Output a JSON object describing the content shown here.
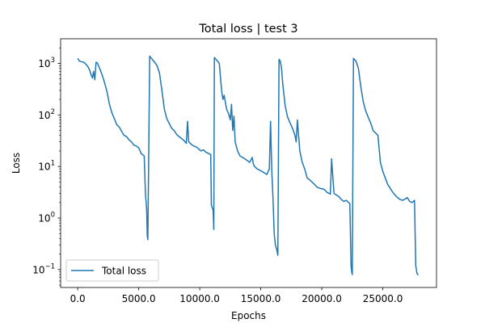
{
  "chart_data": {
    "type": "line",
    "title": "Total loss | test 3",
    "xlabel": "Epochs",
    "ylabel": "Loss",
    "xscale": "linear",
    "yscale": "log",
    "xlim": [
      -1400,
      29400
    ],
    "ylim": [
      0.045,
      3000
    ],
    "grid": false,
    "legend_position": "lower-left",
    "line_color": "#1f77b4",
    "x_ticks": [
      {
        "value": 0,
        "label": "0.0"
      },
      {
        "value": 5000,
        "label": "5000.0"
      },
      {
        "value": 10000,
        "label": "10000.0"
      },
      {
        "value": 15000,
        "label": "15000.0"
      },
      {
        "value": 20000,
        "label": "20000.0"
      },
      {
        "value": 25000,
        "label": "25000.0"
      }
    ],
    "y_ticks": [
      {
        "value": 0.1,
        "base": "10",
        "exp": "−1"
      },
      {
        "value": 1,
        "base": "10",
        "exp": "0"
      },
      {
        "value": 10,
        "base": "10",
        "exp": "1"
      },
      {
        "value": 100,
        "base": "10",
        "exp": "2"
      },
      {
        "value": 1000,
        "base": "10",
        "exp": "3"
      }
    ],
    "series": [
      {
        "name": "Total loss",
        "x": [
          0,
          150,
          300,
          500,
          700,
          850,
          1000,
          1100,
          1200,
          1300,
          1400,
          1500,
          1600,
          1800,
          2000,
          2200,
          2400,
          2600,
          2800,
          3000,
          3200,
          3400,
          3600,
          3800,
          4000,
          4200,
          4400,
          4600,
          4800,
          5000,
          5200,
          5300,
          5450,
          5550,
          5650,
          5700,
          5750,
          5900,
          6100,
          6300,
          6500,
          6700,
          6900,
          7100,
          7300,
          7500,
          7700,
          7900,
          8100,
          8300,
          8500,
          8700,
          8900,
          9000,
          9100,
          9300,
          9500,
          9700,
          9900,
          10100,
          10300,
          10500,
          10700,
          10900,
          10950,
          11100,
          11150,
          11200,
          11400,
          11600,
          11800,
          11900,
          12000,
          12200,
          12400,
          12500,
          12600,
          12700,
          12800,
          12900,
          13100,
          13300,
          13500,
          13700,
          13900,
          14100,
          14300,
          14400,
          14500,
          14700,
          14900,
          15100,
          15300,
          15500,
          15700,
          15800,
          15900,
          16000,
          16100,
          16200,
          16300,
          16400,
          16500,
          16600,
          16700,
          16800,
          17000,
          17200,
          17400,
          17600,
          17800,
          17900,
          18000,
          18200,
          18400,
          18600,
          18800,
          19000,
          19200,
          19400,
          19600,
          19800,
          20200,
          20400,
          20600,
          20700,
          20800,
          21000,
          21200,
          21400,
          21600,
          21800,
          22000,
          22200,
          22300,
          22400,
          22450,
          22500,
          22600,
          22800,
          23000,
          23200,
          23400,
          23600,
          23800,
          24000,
          24100,
          24200,
          24400,
          24600,
          24800,
          25000,
          25200,
          25400,
          25600,
          25800,
          26000,
          26200,
          26400,
          26600,
          26800,
          27000,
          27200,
          27400,
          27600,
          27700,
          27800,
          27900
        ],
        "y": [
          1250,
          1100,
          1080,
          1050,
          950,
          850,
          720,
          600,
          520,
          700,
          480,
          1050,
          1020,
          800,
          600,
          420,
          280,
          160,
          110,
          85,
          65,
          58,
          48,
          40,
          38,
          33,
          30,
          26,
          25,
          23,
          18,
          17,
          16,
          3.0,
          1.5,
          0.45,
          0.38,
          1380,
          1200,
          1050,
          900,
          650,
          300,
          130,
          85,
          68,
          55,
          50,
          42,
          38,
          35,
          32,
          28,
          75,
          30,
          27,
          25,
          24,
          22,
          20,
          21,
          19,
          18,
          17,
          1.8,
          1.4,
          0.6,
          1300,
          1150,
          1000,
          280,
          200,
          240,
          130,
          100,
          80,
          160,
          50,
          95,
          30,
          20,
          16,
          15,
          14,
          13,
          12,
          15,
          11,
          10,
          9,
          8.5,
          8,
          7.5,
          7,
          9,
          75,
          8.5,
          2.5,
          0.5,
          0.3,
          0.25,
          0.19,
          1200,
          1100,
          800,
          400,
          150,
          90,
          70,
          55,
          40,
          30,
          80,
          20,
          12,
          9,
          6,
          5.5,
          5,
          4.5,
          4,
          3.8,
          3.6,
          3.2,
          3.0,
          2.9,
          14,
          3.0,
          2.8,
          2.6,
          2.3,
          2.1,
          2.2,
          2.0,
          1.9,
          0.12,
          0.09,
          0.08,
          1250,
          1100,
          800,
          350,
          180,
          120,
          90,
          70,
          60,
          50,
          45,
          40,
          12,
          8,
          6,
          4.5,
          3.8,
          3.2,
          2.8,
          2.5,
          2.3,
          2.2,
          2.3,
          2.5,
          2.1,
          2.0,
          2.2,
          0.12,
          0.085,
          0.078
        ]
      }
    ]
  }
}
